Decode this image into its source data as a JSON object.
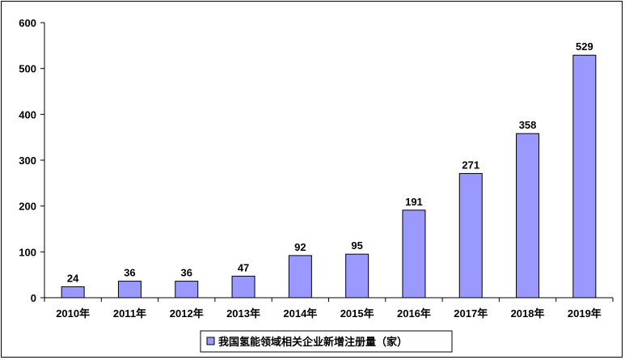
{
  "chart_data": {
    "type": "bar",
    "categories": [
      "2010年",
      "2011年",
      "2012年",
      "2013年",
      "2014年",
      "2015年",
      "2016年",
      "2017年",
      "2018年",
      "2019年"
    ],
    "series": [
      {
        "name": "我国氢能领域相关企业新增注册量（家）",
        "values": [
          24,
          36,
          36,
          47,
          92,
          95,
          191,
          271,
          358,
          529
        ],
        "color": "#9999ff"
      }
    ],
    "ylim": [
      0,
      600
    ],
    "yticks": [
      0,
      100,
      200,
      300,
      400,
      500,
      600
    ],
    "grid": false,
    "legend_position": "bottom"
  }
}
